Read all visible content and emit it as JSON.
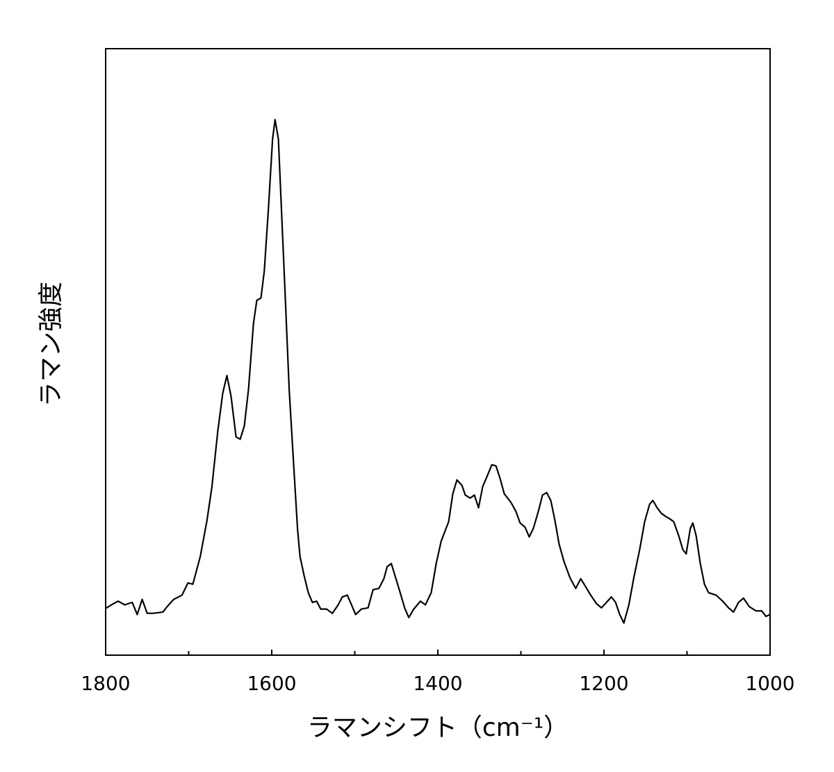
{
  "chart_data": {
    "type": "line",
    "x_label": "ラマンシフト（cm⁻¹）",
    "y_label": "ラマン強度",
    "xlim": [
      1800,
      1000
    ],
    "xticks": [
      1800,
      1600,
      1400,
      1200,
      1000
    ],
    "xminor_ticks": [
      1700,
      1500,
      1300,
      1100
    ],
    "ylim": [
      0,
      100
    ],
    "grid": false,
    "series": [
      {
        "color": "#000000",
        "x": [
          1800,
          1793,
          1785,
          1777,
          1768,
          1762,
          1756,
          1750,
          1743,
          1731,
          1726,
          1718,
          1708,
          1701,
          1695,
          1686,
          1678,
          1672,
          1665,
          1659,
          1654,
          1649,
          1643,
          1638,
          1633,
          1628,
          1622,
          1618,
          1613,
          1609,
          1604,
          1599,
          1596,
          1592,
          1588,
          1584,
          1579,
          1574,
          1569,
          1566,
          1561,
          1556,
          1551,
          1546,
          1541,
          1534,
          1527,
          1520,
          1515,
          1509,
          1504,
          1499,
          1492,
          1484,
          1478,
          1471,
          1465,
          1461,
          1456,
          1452,
          1446,
          1440,
          1435,
          1429,
          1421,
          1415,
          1408,
          1402,
          1396,
          1387,
          1382,
          1377,
          1371,
          1367,
          1361,
          1356,
          1351,
          1346,
          1341,
          1335,
          1330,
          1325,
          1320,
          1312,
          1306,
          1301,
          1295,
          1290,
          1285,
          1279,
          1274,
          1269,
          1264,
          1259,
          1254,
          1248,
          1241,
          1234,
          1228,
          1223,
          1216,
          1209,
          1203,
          1197,
          1191,
          1186,
          1181,
          1176,
          1170,
          1164,
          1157,
          1151,
          1145,
          1141,
          1136,
          1131,
          1126,
          1121,
          1116,
          1110,
          1105,
          1101,
          1096,
          1093,
          1089,
          1084,
          1079,
          1074,
          1065,
          1057,
          1050,
          1044,
          1038,
          1032,
          1025,
          1017,
          1010,
          1005,
          1000
        ],
        "values": [
          7.7,
          8.3,
          8.9,
          8.3,
          8.7,
          6.7,
          9.2,
          6.9,
          6.9,
          7.1,
          8.0,
          9.2,
          9.9,
          11.9,
          11.7,
          16.3,
          22.2,
          27.8,
          36.9,
          43.2,
          46.1,
          42.7,
          36.0,
          35.6,
          37.8,
          43.8,
          54.7,
          58.5,
          58.9,
          63.3,
          73.6,
          85.1,
          88.3,
          85.1,
          72.5,
          59.9,
          43.8,
          32.3,
          20.9,
          16.3,
          13.1,
          10.3,
          8.7,
          8.9,
          7.6,
          7.6,
          6.9,
          8.3,
          9.6,
          9.9,
          8.3,
          6.7,
          7.6,
          7.8,
          10.8,
          11.0,
          12.6,
          14.6,
          15.1,
          13.3,
          10.6,
          7.8,
          6.2,
          7.6,
          8.9,
          8.3,
          10.3,
          15.1,
          18.8,
          22.0,
          26.6,
          28.9,
          28.0,
          26.4,
          25.9,
          26.4,
          24.3,
          27.8,
          29.4,
          31.4,
          31.2,
          29.1,
          26.6,
          25.2,
          23.7,
          21.8,
          21.1,
          19.5,
          20.9,
          23.7,
          26.4,
          26.8,
          25.5,
          22.2,
          18.3,
          15.4,
          12.8,
          11.0,
          12.6,
          11.5,
          9.9,
          8.5,
          7.8,
          8.7,
          9.6,
          8.7,
          6.7,
          5.3,
          8.3,
          12.8,
          17.4,
          22.0,
          24.9,
          25.5,
          24.3,
          23.4,
          22.9,
          22.5,
          22.0,
          19.7,
          17.4,
          16.7,
          20.9,
          21.8,
          19.7,
          15.1,
          11.7,
          10.3,
          9.9,
          8.9,
          7.8,
          7.1,
          8.7,
          9.4,
          8.0,
          7.3,
          7.3,
          6.4,
          6.7
        ]
      }
    ]
  }
}
